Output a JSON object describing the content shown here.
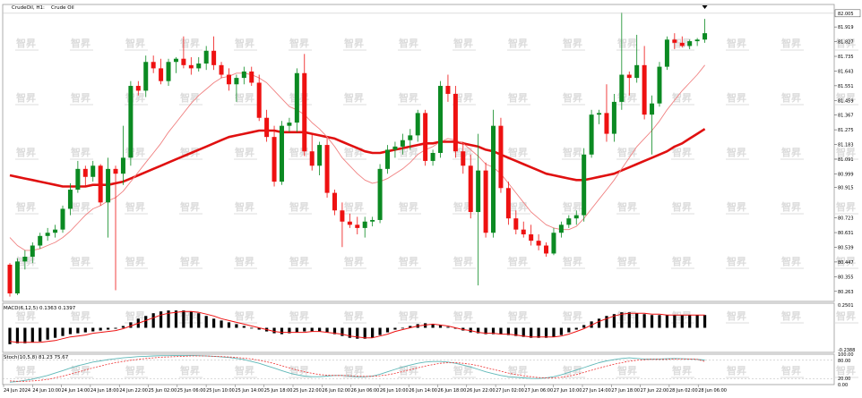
{
  "header": {
    "symbol_label": "CrudeOil, H1:",
    "description": "Crude Oil"
  },
  "colors": {
    "bull": "#0b8a22",
    "bear": "#ee1111",
    "ma_fast": "#f08080",
    "ma_slow": "#e01010",
    "macd_hist": "#000000",
    "macd_signal": "#ee1111",
    "stoch_main": "#5fb8b8",
    "stoch_signal": "#ee3333",
    "watermark": "#dcdcdc",
    "grid": "#e6e6e6"
  },
  "watermark": {
    "text": "智昇"
  },
  "chart_data": [
    {
      "type": "candlestick",
      "name": "main",
      "yticks": [
        81.919,
        81.827,
        81.735,
        81.643,
        81.551,
        81.459,
        81.367,
        81.275,
        81.183,
        81.091,
        80.999,
        80.915,
        80.723,
        80.631,
        80.539,
        80.447,
        80.355,
        80.263
      ],
      "ylim": [
        80.2,
        82.06
      ],
      "current_price": 82.005,
      "ohlc": [
        [
          80.43,
          80.44,
          80.23,
          80.25
        ],
        [
          80.25,
          80.47,
          80.24,
          80.45
        ],
        [
          80.45,
          80.52,
          80.4,
          80.48
        ],
        [
          80.48,
          80.57,
          80.44,
          80.55
        ],
        [
          80.55,
          80.63,
          80.53,
          80.61
        ],
        [
          80.61,
          80.66,
          80.58,
          80.63
        ],
        [
          80.63,
          80.68,
          80.6,
          80.65
        ],
        [
          80.65,
          80.8,
          80.63,
          80.78
        ],
        [
          80.78,
          80.94,
          80.74,
          80.9
        ],
        [
          80.9,
          81.08,
          80.88,
          81.03
        ],
        [
          81.03,
          81.05,
          80.92,
          80.98
        ],
        [
          80.98,
          81.08,
          80.95,
          81.05
        ],
        [
          81.05,
          81.06,
          80.8,
          80.82
        ],
        [
          80.82,
          81.1,
          80.6,
          81.03
        ],
        [
          81.03,
          81.05,
          80.27,
          81.0
        ],
        [
          81.0,
          81.3,
          80.93,
          81.1
        ],
        [
          81.1,
          81.58,
          81.05,
          81.55
        ],
        [
          81.55,
          81.58,
          81.49,
          81.52
        ],
        [
          81.52,
          81.74,
          81.48,
          81.7
        ],
        [
          81.7,
          81.74,
          81.63,
          81.66
        ],
        [
          81.66,
          81.72,
          81.56,
          81.58
        ],
        [
          81.58,
          81.72,
          81.55,
          81.7
        ],
        [
          81.7,
          81.73,
          81.63,
          81.72
        ],
        [
          81.72,
          81.86,
          81.66,
          81.68
        ],
        [
          81.68,
          81.73,
          81.62,
          81.66
        ],
        [
          81.66,
          81.73,
          81.64,
          81.69
        ],
        [
          81.69,
          81.8,
          81.65,
          81.77
        ],
        [
          81.77,
          81.86,
          81.65,
          81.68
        ],
        [
          81.68,
          81.7,
          81.6,
          81.62
        ],
        [
          81.62,
          81.66,
          81.52,
          81.56
        ],
        [
          81.56,
          81.62,
          81.45,
          81.6
        ],
        [
          81.6,
          81.67,
          81.56,
          81.64
        ],
        [
          81.64,
          81.67,
          81.55,
          81.57
        ],
        [
          81.57,
          81.62,
          81.33,
          81.35
        ],
        [
          81.35,
          81.4,
          81.2,
          81.23
        ],
        [
          81.23,
          81.3,
          80.92,
          80.95
        ],
        [
          80.95,
          81.33,
          80.93,
          81.3
        ],
        [
          81.3,
          81.35,
          81.26,
          81.32
        ],
        [
          81.32,
          81.66,
          81.26,
          81.63
        ],
        [
          81.63,
          81.75,
          81.11,
          81.14
        ],
        [
          81.14,
          81.25,
          81.02,
          81.05
        ],
        [
          81.05,
          81.2,
          80.99,
          81.18
        ],
        [
          81.18,
          81.22,
          80.85,
          80.88
        ],
        [
          80.88,
          80.9,
          80.74,
          80.77
        ],
        [
          80.77,
          80.82,
          80.54,
          80.7
        ],
        [
          80.7,
          80.75,
          80.66,
          80.68
        ],
        [
          80.68,
          80.73,
          80.62,
          80.66
        ],
        [
          80.66,
          80.73,
          80.6,
          80.7
        ],
        [
          80.7,
          80.73,
          80.67,
          80.71
        ],
        [
          80.71,
          81.06,
          80.69,
          81.03
        ],
        [
          81.03,
          81.18,
          81.0,
          81.15
        ],
        [
          81.15,
          81.2,
          81.1,
          81.17
        ],
        [
          81.17,
          81.25,
          81.12,
          81.21
        ],
        [
          81.21,
          81.28,
          81.15,
          81.24
        ],
        [
          81.24,
          81.4,
          81.2,
          81.38
        ],
        [
          81.38,
          81.4,
          81.05,
          81.08
        ],
        [
          81.08,
          81.15,
          81.05,
          81.13
        ],
        [
          81.13,
          81.58,
          81.1,
          81.55
        ],
        [
          81.55,
          81.62,
          81.45,
          81.5
        ],
        [
          81.5,
          81.55,
          81.1,
          81.14
        ],
        [
          81.14,
          81.2,
          81.0,
          81.05
        ],
        [
          81.05,
          81.12,
          80.72,
          80.76
        ],
        [
          80.76,
          81.25,
          80.3,
          81.02
        ],
        [
          81.02,
          81.07,
          80.6,
          80.63
        ],
        [
          80.63,
          81.4,
          80.6,
          81.3
        ],
        [
          81.3,
          81.35,
          80.88,
          80.91
        ],
        [
          80.91,
          80.95,
          80.68,
          80.72
        ],
        [
          80.72,
          80.77,
          80.62,
          80.65
        ],
        [
          80.65,
          80.7,
          80.6,
          80.62
        ],
        [
          80.62,
          80.68,
          80.55,
          80.58
        ],
        [
          80.58,
          80.62,
          80.52,
          80.55
        ],
        [
          80.55,
          80.57,
          80.48,
          80.5
        ],
        [
          80.5,
          80.66,
          80.49,
          80.63
        ],
        [
          80.63,
          80.7,
          80.6,
          80.68
        ],
        [
          80.68,
          80.74,
          80.66,
          80.72
        ],
        [
          80.72,
          80.77,
          80.68,
          80.74
        ],
        [
          80.74,
          81.16,
          80.7,
          81.12
        ],
        [
          81.12,
          81.4,
          81.1,
          81.37
        ],
        [
          81.37,
          81.4,
          81.31,
          81.38
        ],
        [
          81.38,
          81.56,
          81.2,
          81.25
        ],
        [
          81.25,
          81.5,
          81.2,
          81.45
        ],
        [
          81.45,
          82.01,
          81.4,
          81.62
        ],
        [
          81.62,
          81.64,
          81.49,
          81.6
        ],
        [
          81.6,
          81.87,
          81.57,
          81.68
        ],
        [
          81.68,
          81.8,
          81.34,
          81.37
        ],
        [
          81.37,
          81.49,
          81.12,
          81.44
        ],
        [
          81.44,
          81.7,
          81.42,
          81.67
        ],
        [
          81.67,
          81.86,
          81.65,
          81.84
        ],
        [
          81.84,
          81.88,
          81.78,
          81.82
        ],
        [
          81.82,
          81.86,
          81.79,
          81.8
        ],
        [
          81.8,
          81.84,
          81.78,
          81.83
        ],
        [
          81.83,
          81.85,
          81.8,
          81.84
        ],
        [
          81.84,
          81.97,
          81.82,
          81.88
        ]
      ],
      "ma_fast": [
        80.6,
        80.55,
        80.52,
        80.52,
        80.53,
        80.55,
        80.57,
        80.6,
        80.64,
        80.69,
        80.74,
        80.78,
        80.8,
        80.83,
        80.85,
        80.89,
        80.95,
        81.01,
        81.07,
        81.13,
        81.19,
        81.26,
        81.32,
        81.38,
        81.44,
        81.49,
        81.53,
        81.57,
        81.6,
        81.61,
        81.63,
        81.63,
        81.62,
        81.6,
        81.57,
        81.52,
        81.47,
        81.42,
        81.4,
        81.37,
        81.32,
        81.28,
        81.23,
        81.17,
        81.1,
        81.05,
        81.0,
        80.96,
        80.94,
        80.95,
        80.97,
        81.0,
        81.03,
        81.07,
        81.12,
        81.15,
        81.17,
        81.2,
        81.22,
        81.21,
        81.19,
        81.15,
        81.11,
        81.06,
        81.04,
        81.0,
        80.94,
        80.88,
        80.82,
        80.76,
        80.72,
        80.68,
        80.66,
        80.65,
        80.65,
        80.67,
        80.72,
        80.78,
        80.84,
        80.9,
        80.96,
        81.03,
        81.1,
        81.17,
        81.22,
        81.27,
        81.33,
        81.4,
        81.46,
        81.52,
        81.57,
        81.62,
        81.68
      ],
      "ma_slow": [
        80.99,
        80.98,
        80.97,
        80.96,
        80.95,
        80.94,
        80.93,
        80.92,
        80.92,
        80.92,
        80.92,
        80.93,
        80.93,
        80.93,
        80.94,
        80.95,
        80.97,
        80.99,
        81.01,
        81.03,
        81.05,
        81.07,
        81.09,
        81.11,
        81.13,
        81.15,
        81.17,
        81.19,
        81.21,
        81.23,
        81.24,
        81.25,
        81.26,
        81.27,
        81.27,
        81.27,
        81.26,
        81.26,
        81.26,
        81.26,
        81.25,
        81.24,
        81.23,
        81.22,
        81.2,
        81.18,
        81.16,
        81.14,
        81.13,
        81.13,
        81.14,
        81.15,
        81.16,
        81.17,
        81.18,
        81.19,
        81.19,
        81.2,
        81.2,
        81.2,
        81.19,
        81.18,
        81.17,
        81.15,
        81.14,
        81.12,
        81.1,
        81.08,
        81.06,
        81.04,
        81.02,
        81.0,
        80.99,
        80.98,
        80.97,
        80.96,
        80.96,
        80.97,
        80.98,
        80.99,
        81.0,
        81.02,
        81.04,
        81.06,
        81.08,
        81.1,
        81.12,
        81.14,
        81.17,
        81.19,
        81.22,
        81.25,
        81.28
      ]
    },
    {
      "type": "bar",
      "name": "macd",
      "label": "MACD(6,12,5) 0.1363 0.1397",
      "yticks": [
        0.2501,
        -0.2388
      ],
      "ylim": [
        -0.27,
        0.27
      ],
      "values": [
        -0.18,
        -0.17,
        -0.17,
        -0.16,
        -0.15,
        -0.13,
        -0.11,
        -0.09,
        -0.07,
        -0.06,
        -0.05,
        -0.04,
        -0.03,
        -0.02,
        -0.01,
        0.02,
        0.06,
        0.1,
        0.13,
        0.16,
        0.18,
        0.19,
        0.19,
        0.19,
        0.18,
        0.16,
        0.13,
        0.1,
        0.08,
        0.06,
        0.04,
        0.02,
        0.0,
        -0.02,
        -0.04,
        -0.06,
        -0.07,
        -0.06,
        -0.05,
        -0.04,
        -0.04,
        -0.04,
        -0.05,
        -0.07,
        -0.09,
        -0.11,
        -0.12,
        -0.12,
        -0.11,
        -0.08,
        -0.05,
        -0.02,
        0.0,
        0.02,
        0.04,
        0.05,
        0.04,
        0.03,
        0.01,
        -0.01,
        -0.03,
        -0.05,
        -0.06,
        -0.07,
        -0.07,
        -0.07,
        -0.08,
        -0.09,
        -0.1,
        -0.11,
        -0.11,
        -0.11,
        -0.1,
        -0.08,
        -0.05,
        -0.02,
        0.03,
        0.07,
        0.1,
        0.13,
        0.15,
        0.17,
        0.17,
        0.16,
        0.15,
        0.14,
        0.14,
        0.14,
        0.14,
        0.14,
        0.14,
        0.14,
        0.14
      ],
      "signal": [
        -0.15,
        -0.16,
        -0.16,
        -0.16,
        -0.16,
        -0.15,
        -0.14,
        -0.12,
        -0.1,
        -0.09,
        -0.08,
        -0.06,
        -0.05,
        -0.04,
        -0.03,
        -0.01,
        0.02,
        0.05,
        0.08,
        0.11,
        0.14,
        0.16,
        0.17,
        0.18,
        0.18,
        0.17,
        0.15,
        0.13,
        0.1,
        0.08,
        0.06,
        0.04,
        0.02,
        0.0,
        -0.02,
        -0.04,
        -0.05,
        -0.05,
        -0.05,
        -0.05,
        -0.04,
        -0.04,
        -0.05,
        -0.06,
        -0.07,
        -0.09,
        -0.1,
        -0.11,
        -0.11,
        -0.09,
        -0.07,
        -0.04,
        -0.02,
        0.0,
        0.02,
        0.03,
        0.04,
        0.03,
        0.02,
        0.0,
        -0.02,
        -0.03,
        -0.05,
        -0.06,
        -0.06,
        -0.07,
        -0.07,
        -0.08,
        -0.09,
        -0.1,
        -0.1,
        -0.1,
        -0.1,
        -0.09,
        -0.07,
        -0.04,
        -0.01,
        0.03,
        0.07,
        0.1,
        0.13,
        0.15,
        0.16,
        0.16,
        0.16,
        0.15,
        0.15,
        0.14,
        0.14,
        0.14,
        0.14,
        0.14,
        0.14
      ]
    },
    {
      "type": "line",
      "name": "stochastic",
      "label": "Stoch(10,5,8) 81.23 75.67",
      "yticks": [
        100.0,
        80.0,
        20.0,
        0.0
      ],
      "ylim": [
        0,
        100
      ],
      "main": [
        8,
        10,
        14,
        18,
        24,
        30,
        38,
        46,
        54,
        62,
        68,
        74,
        78,
        82,
        85,
        88,
        90,
        92,
        93,
        94,
        95,
        95,
        96,
        96,
        96,
        95,
        94,
        93,
        91,
        89,
        86,
        82,
        76,
        70,
        62,
        54,
        46,
        38,
        32,
        28,
        26,
        26,
        28,
        30,
        30,
        28,
        26,
        26,
        28,
        34,
        42,
        50,
        58,
        64,
        70,
        74,
        76,
        76,
        74,
        70,
        64,
        58,
        50,
        42,
        36,
        30,
        26,
        24,
        22,
        20,
        20,
        22,
        26,
        32,
        40,
        48,
        56,
        64,
        72,
        78,
        82,
        86,
        88,
        86,
        84,
        84,
        84,
        85,
        86,
        85,
        84,
        83,
        81
      ],
      "signal": [
        12,
        11,
        11,
        12,
        14,
        17,
        22,
        28,
        34,
        41,
        48,
        55,
        61,
        67,
        72,
        76,
        80,
        83,
        86,
        88,
        90,
        91,
        92,
        93,
        94,
        94,
        94,
        93,
        92,
        91,
        89,
        87,
        84,
        80,
        75,
        69,
        62,
        55,
        48,
        42,
        37,
        33,
        31,
        30,
        30,
        29,
        28,
        27,
        27,
        29,
        32,
        37,
        43,
        49,
        55,
        61,
        66,
        70,
        72,
        72,
        70,
        67,
        62,
        56,
        50,
        44,
        38,
        33,
        29,
        26,
        23,
        22,
        22,
        24,
        28,
        33,
        40,
        47,
        54,
        61,
        67,
        72,
        77,
        80,
        82,
        83,
        83,
        83,
        84,
        84,
        84,
        83,
        76
      ]
    }
  ],
  "xaxis": {
    "labels": [
      "24 Jun 2024",
      "24 Jun 10:00",
      "24 Jun 14:00",
      "24 Jun 18:00",
      "24 Jun 22:00",
      "25 Jun 02:00",
      "25 Jun 06:00",
      "25 Jun 10:00",
      "25 Jun 14:00",
      "25 Jun 18:00",
      "25 Jun 22:00",
      "26 Jun 02:00",
      "26 Jun 06:00",
      "26 Jun 10:00",
      "26 Jun 14:00",
      "26 Jun 18:00",
      "26 Jun 22:00",
      "27 Jun 02:00",
      "27 Jun 06:00",
      "27 Jun 10:00",
      "27 Jun 14:00",
      "27 Jun 18:00",
      "27 Jun 22:00",
      "28 Jun 02:00",
      "28 Jun 06:00"
    ]
  }
}
